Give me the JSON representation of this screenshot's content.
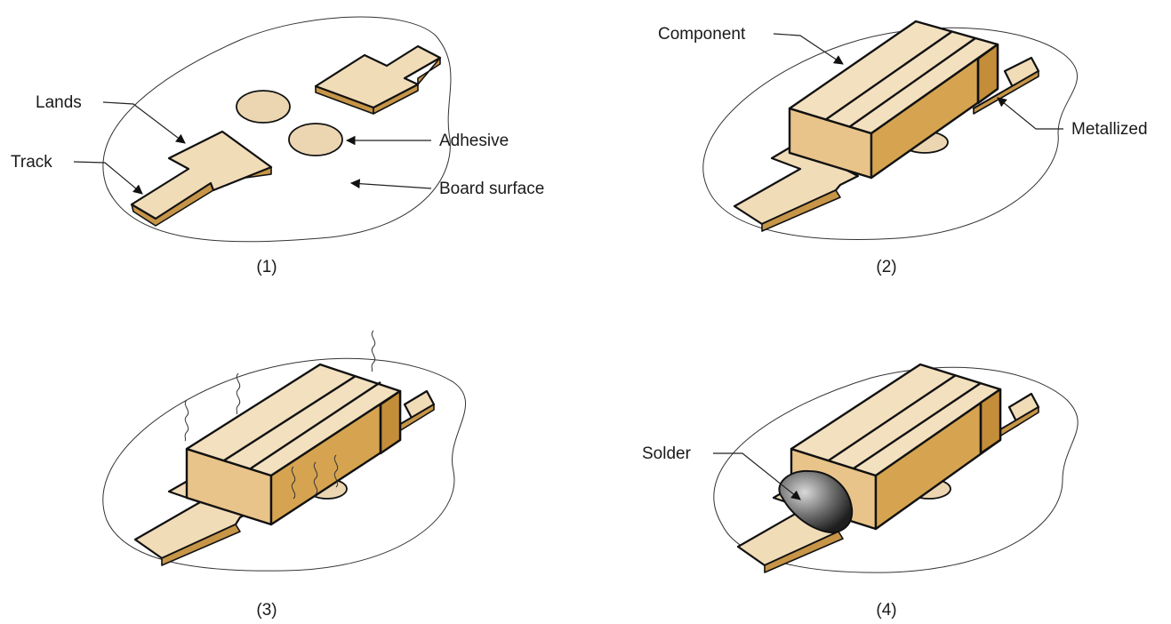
{
  "panels": [
    {
      "caption": "(1)",
      "labels": {
        "lands": "Lands",
        "track": "Track",
        "adhesive": "Adhesive",
        "board_surface": "Board surface"
      }
    },
    {
      "caption": "(2)",
      "labels": {
        "component": "Component",
        "metallized": "Metallized"
      }
    },
    {
      "caption": "(3)",
      "labels": {}
    },
    {
      "caption": "(4)",
      "labels": {
        "solder": "Solder"
      }
    }
  ]
}
